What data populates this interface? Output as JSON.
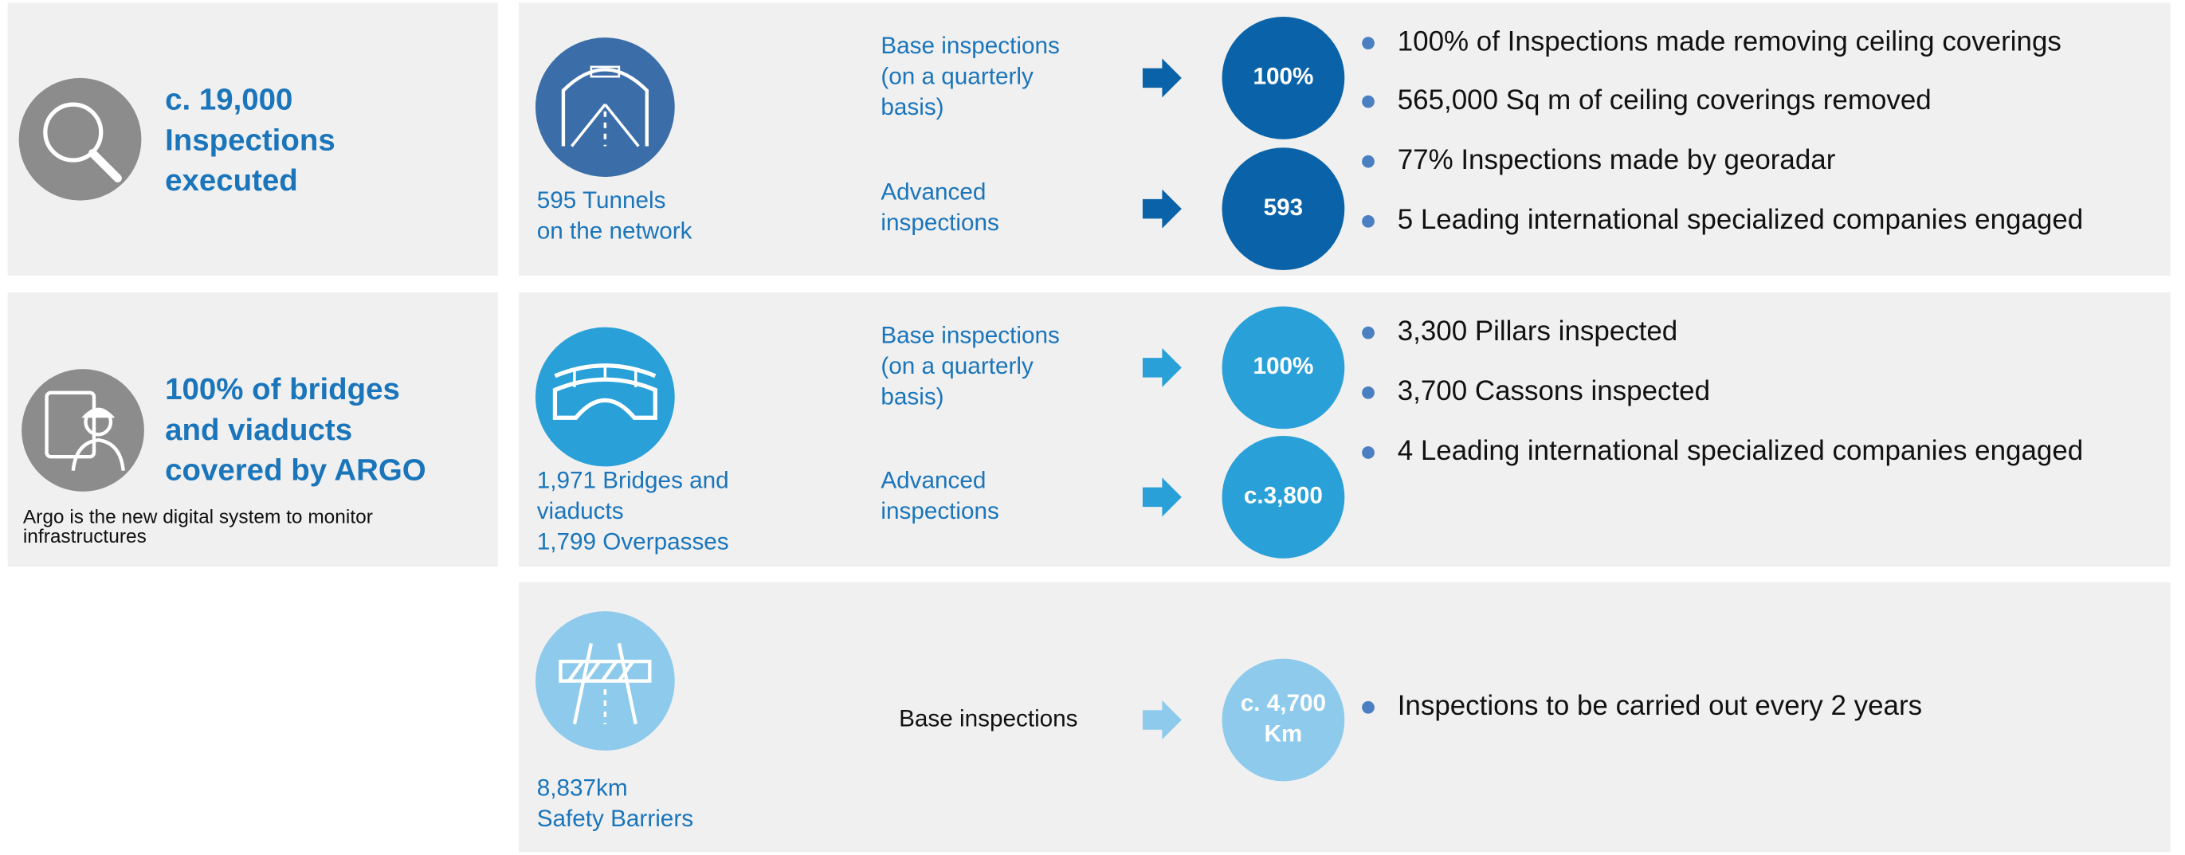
{
  "summary": [
    {
      "title_lines": [
        "c. 19,000",
        "Inspections",
        "executed"
      ]
    },
    {
      "title_lines": [
        "100% of bridges",
        "and viaducts",
        "covered by ARGO"
      ],
      "note_lines": [
        "Argo is the new digital system to monitor",
        "infrastructures"
      ]
    }
  ],
  "rows": [
    {
      "asset_lines": [
        "595 Tunnels",
        "on the network"
      ],
      "inspections": [
        {
          "label_lines": [
            "Base inspections",
            "(on a quarterly",
            "basis)"
          ],
          "value_lines": [
            "100%"
          ]
        },
        {
          "label_lines": [
            "Advanced",
            "inspections"
          ],
          "value_lines": [
            "593"
          ]
        }
      ],
      "bullets": [
        "100% of Inspections made removing ceiling coverings",
        "565,000 Sq m of ceiling coverings removed",
        "77% Inspections made by georadar",
        "5 Leading international specialized companies engaged"
      ]
    },
    {
      "asset_lines": [
        "1,971 Bridges and",
        "viaducts",
        "1,799 Overpasses"
      ],
      "inspections": [
        {
          "label_lines": [
            "Base inspections",
            "(on a quarterly",
            "basis)"
          ],
          "value_lines": [
            "100%"
          ]
        },
        {
          "label_lines": [
            "Advanced",
            "inspections"
          ],
          "value_lines": [
            "c.3,800"
          ]
        }
      ],
      "bullets": [
        "3,300 Pillars inspected",
        "3,700 Cassons inspected",
        "4 Leading international specialized companies engaged"
      ]
    },
    {
      "asset_lines": [
        "8,837km",
        "Safety Barriers"
      ],
      "inspections": [
        {
          "label_lines": [
            "Base inspections"
          ],
          "value_lines": [
            "c. 4,700",
            "Km"
          ]
        }
      ],
      "bullets": [
        "Inspections to be carried out every 2 years"
      ]
    }
  ]
}
